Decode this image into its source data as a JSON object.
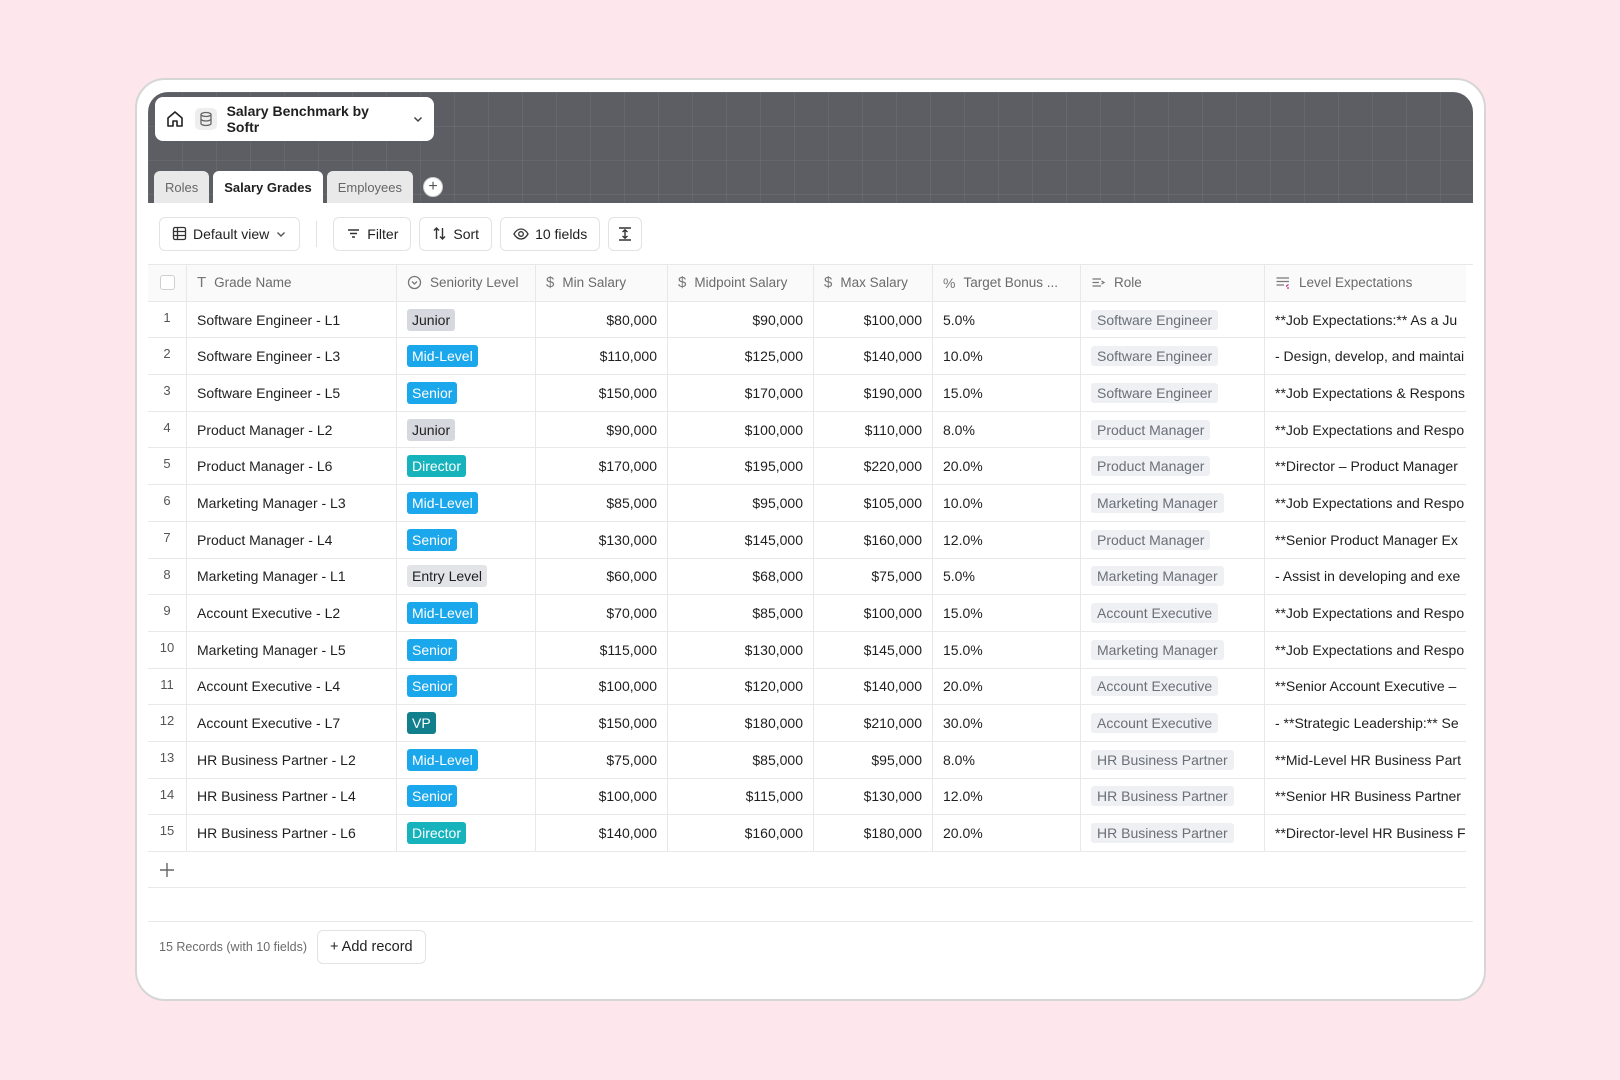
{
  "base": {
    "name": "Salary Benchmark by Softr"
  },
  "tabs": [
    {
      "label": "Roles",
      "active": false
    },
    {
      "label": "Salary Grades",
      "active": true
    },
    {
      "label": "Employees",
      "active": false
    }
  ],
  "toolbar": {
    "view": "Default view",
    "filter": "Filter",
    "sort": "Sort",
    "fields": "10 fields"
  },
  "columns": [
    "Grade Name",
    "Seniority Level",
    "Min Salary",
    "Midpoint Salary",
    "Max Salary",
    "Target Bonus ...",
    "Role",
    "Level Expectations"
  ],
  "seniority_colors": {
    "Junior": {
      "bg": "#d5d8de",
      "fg": "#1f1f1f"
    },
    "Mid-Level": {
      "bg": "#1aa7ec",
      "fg": "#ffffff"
    },
    "Senior": {
      "bg": "#1aa7ec",
      "fg": "#ffffff"
    },
    "Director": {
      "bg": "#16b3bd",
      "fg": "#ffffff"
    },
    "Entry Level": {
      "bg": "#e3e4e7",
      "fg": "#1f1f1f"
    },
    "VP": {
      "bg": "#117f8c",
      "fg": "#ffffff"
    }
  },
  "rows": [
    {
      "num": "1",
      "grade": "Software Engineer - L1",
      "seniority": "Junior",
      "min": "$80,000",
      "mid": "$90,000",
      "max": "$100,000",
      "bonus": "5.0%",
      "role": "Software Engineer",
      "expect": "**Job Expectations:** As a Ju"
    },
    {
      "num": "2",
      "grade": "Software Engineer - L3",
      "seniority": "Mid-Level",
      "min": "$110,000",
      "mid": "$125,000",
      "max": "$140,000",
      "bonus": "10.0%",
      "role": "Software Engineer",
      "expect": "- Design, develop, and maintai"
    },
    {
      "num": "3",
      "grade": "Software Engineer - L5",
      "seniority": "Senior",
      "min": "$150,000",
      "mid": "$170,000",
      "max": "$190,000",
      "bonus": "15.0%",
      "role": "Software Engineer",
      "expect": "**Job Expectations & Respons"
    },
    {
      "num": "4",
      "grade": "Product Manager - L2",
      "seniority": "Junior",
      "min": "$90,000",
      "mid": "$100,000",
      "max": "$110,000",
      "bonus": "8.0%",
      "role": "Product Manager",
      "expect": "**Job Expectations and Respo"
    },
    {
      "num": "5",
      "grade": "Product Manager - L6",
      "seniority": "Director",
      "min": "$170,000",
      "mid": "$195,000",
      "max": "$220,000",
      "bonus": "20.0%",
      "role": "Product Manager",
      "expect": "**Director – Product Manager"
    },
    {
      "num": "6",
      "grade": "Marketing Manager - L3",
      "seniority": "Mid-Level",
      "min": "$85,000",
      "mid": "$95,000",
      "max": "$105,000",
      "bonus": "10.0%",
      "role": "Marketing Manager",
      "expect": "**Job Expectations and Respo"
    },
    {
      "num": "7",
      "grade": "Product Manager - L4",
      "seniority": "Senior",
      "min": "$130,000",
      "mid": "$145,000",
      "max": "$160,000",
      "bonus": "12.0%",
      "role": "Product Manager",
      "expect": "**Senior Product Manager Ex"
    },
    {
      "num": "8",
      "grade": "Marketing Manager - L1",
      "seniority": "Entry Level",
      "min": "$60,000",
      "mid": "$68,000",
      "max": "$75,000",
      "bonus": "5.0%",
      "role": "Marketing Manager",
      "expect": "- Assist in developing and exe"
    },
    {
      "num": "9",
      "grade": "Account Executive - L2",
      "seniority": "Mid-Level",
      "min": "$70,000",
      "mid": "$85,000",
      "max": "$100,000",
      "bonus": "15.0%",
      "role": "Account Executive",
      "expect": "**Job Expectations and Respo"
    },
    {
      "num": "10",
      "grade": "Marketing Manager - L5",
      "seniority": "Senior",
      "min": "$115,000",
      "mid": "$130,000",
      "max": "$145,000",
      "bonus": "15.0%",
      "role": "Marketing Manager",
      "expect": "**Job Expectations and Respo"
    },
    {
      "num": "11",
      "grade": "Account Executive - L4",
      "seniority": "Senior",
      "min": "$100,000",
      "mid": "$120,000",
      "max": "$140,000",
      "bonus": "20.0%",
      "role": "Account Executive",
      "expect": "**Senior Account Executive –"
    },
    {
      "num": "12",
      "grade": "Account Executive - L7",
      "seniority": "VP",
      "min": "$150,000",
      "mid": "$180,000",
      "max": "$210,000",
      "bonus": "30.0%",
      "role": "Account Executive",
      "expect": "- **Strategic Leadership:** Se"
    },
    {
      "num": "13",
      "grade": "HR Business Partner - L2",
      "seniority": "Mid-Level",
      "min": "$75,000",
      "mid": "$85,000",
      "max": "$95,000",
      "bonus": "8.0%",
      "role": "HR Business Partner",
      "expect": "**Mid-Level HR Business Part"
    },
    {
      "num": "14",
      "grade": "HR Business Partner - L4",
      "seniority": "Senior",
      "min": "$100,000",
      "mid": "$115,000",
      "max": "$130,000",
      "bonus": "12.0%",
      "role": "HR Business Partner",
      "expect": "**Senior HR Business Partner"
    },
    {
      "num": "15",
      "grade": "HR Business Partner - L6",
      "seniority": "Director",
      "min": "$140,000",
      "mid": "$160,000",
      "max": "$180,000",
      "bonus": "20.0%",
      "role": "HR Business Partner",
      "expect": "**Director-level HR Business F"
    }
  ],
  "footer": {
    "count": "15 Records (with 10 fields)",
    "add_record": "+ Add record"
  }
}
